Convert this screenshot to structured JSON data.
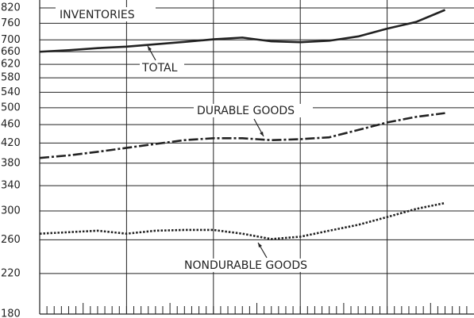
{
  "chart_data": {
    "type": "line",
    "annotations": [
      "INVENTORIES",
      "TOTAL",
      "DURABLE GOODS",
      "NONDURABLE GOODS"
    ],
    "x": [
      0,
      4,
      8,
      12,
      16,
      20,
      24,
      28,
      32,
      36,
      40,
      44,
      48,
      52,
      56
    ],
    "series": [
      {
        "name": "TOTAL",
        "color": "#222222",
        "style": "solid",
        "values": [
          660,
          665,
          672,
          677,
          685,
          693,
          702,
          708,
          695,
          692,
          697,
          712,
          740,
          765,
          812
        ]
      },
      {
        "name": "DURABLE GOODS",
        "color": "#222222",
        "style": "dashdot",
        "values": [
          390,
          395,
          402,
          410,
          418,
          426,
          430,
          430,
          426,
          428,
          432,
          448,
          465,
          478,
          487
        ]
      },
      {
        "name": "NONDURABLE GOODS",
        "color": "#222222",
        "style": "dotted",
        "values": [
          268,
          270,
          272,
          268,
          272,
          273,
          273,
          268,
          261,
          264,
          272,
          280,
          291,
          303,
          312
        ]
      }
    ],
    "xlim": [
      0,
      60
    ],
    "xticks": [
      12,
      24,
      36,
      48
    ],
    "ylim": [
      180,
      820
    ],
    "log_y": true,
    "yticks": [
      180,
      220,
      260,
      300,
      340,
      380,
      420,
      460,
      500,
      540,
      580,
      620,
      660,
      700,
      760,
      820
    ],
    "grid": true
  }
}
